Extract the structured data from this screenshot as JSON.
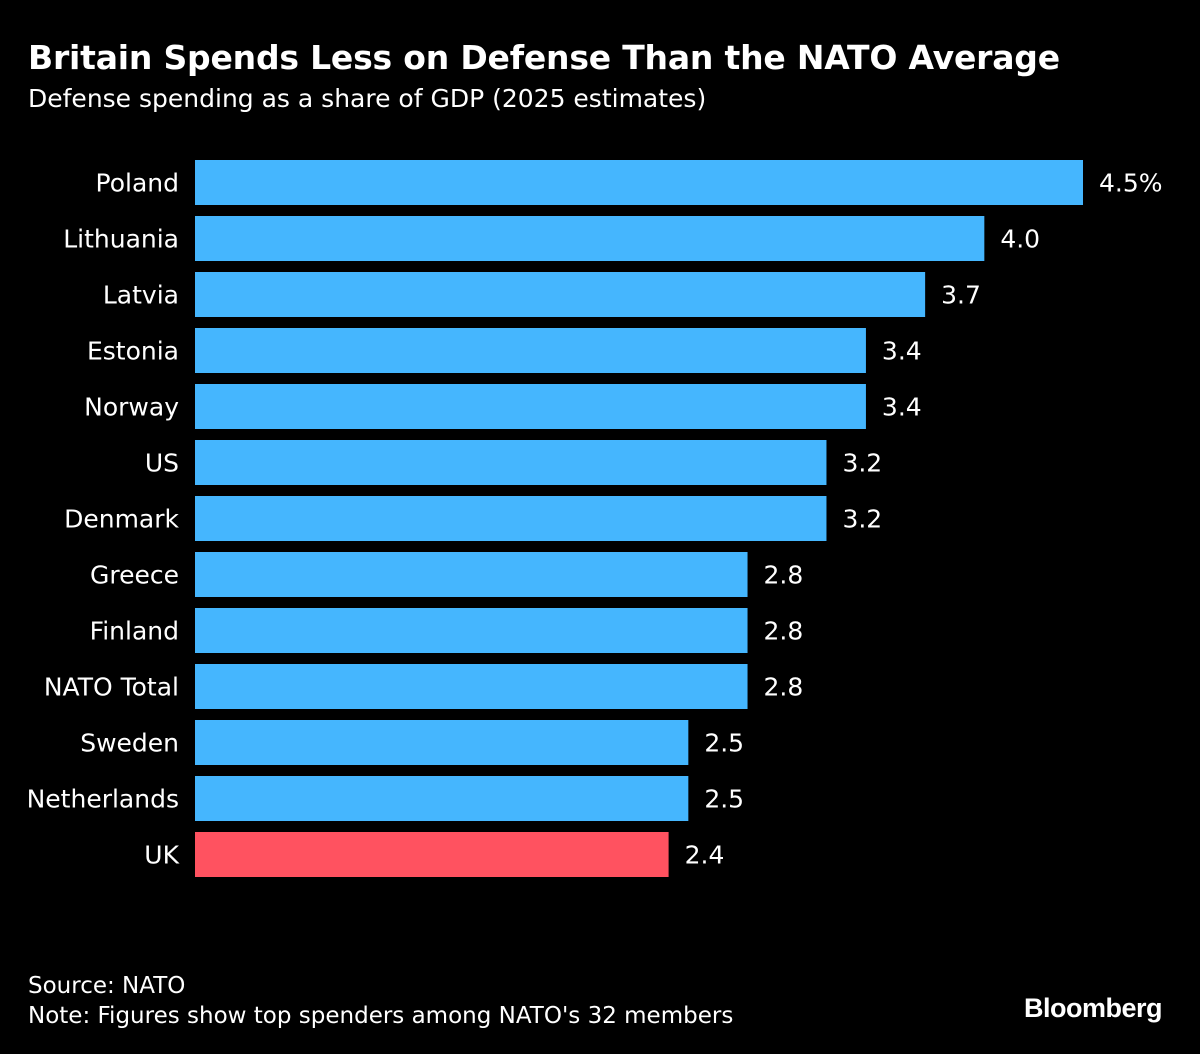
{
  "chart_data": {
    "type": "bar",
    "orientation": "horizontal",
    "title": "Britain Spends Less on Defense Than the NATO Average",
    "subtitle": "Defense spending as a share of GDP (2025 estimates)",
    "categories": [
      "Poland",
      "Lithuania",
      "Latvia",
      "Estonia",
      "Norway",
      "US",
      "Denmark",
      "Greece",
      "Finland",
      "NATO Total",
      "Sweden",
      "Netherlands",
      "UK"
    ],
    "values": [
      4.5,
      4.0,
      3.7,
      3.4,
      3.4,
      3.2,
      3.2,
      2.8,
      2.8,
      2.8,
      2.5,
      2.5,
      2.4
    ],
    "value_labels": [
      "4.5%",
      "4.0",
      "3.7",
      "3.4",
      "3.4",
      "3.2",
      "3.2",
      "2.8",
      "2.8",
      "2.8",
      "2.5",
      "2.5",
      "2.4"
    ],
    "highlight": "UK",
    "xlim": [
      0,
      4.5
    ],
    "xlabel": "",
    "ylabel": "",
    "colors": {
      "default": "#45b6fe",
      "highlight": "#ff5260",
      "background": "#000000",
      "text": "#ffffff"
    }
  },
  "footer": {
    "source": "Source: NATO",
    "note": "Note: Figures show top spenders among NATO's 32 members"
  },
  "brand": "Bloomberg"
}
